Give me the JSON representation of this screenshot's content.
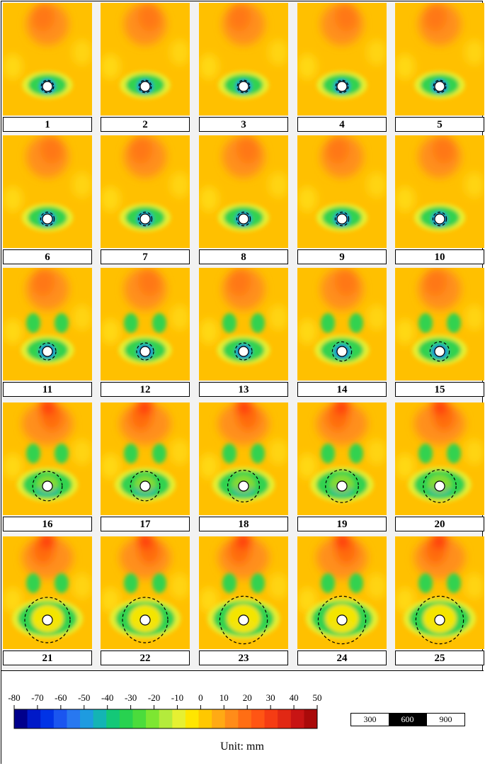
{
  "panels": [
    "1",
    "2",
    "3",
    "4",
    "5",
    "6",
    "7",
    "8",
    "9",
    "10",
    "11",
    "12",
    "13",
    "14",
    "15",
    "16",
    "17",
    "18",
    "19",
    "20",
    "21",
    "22",
    "23",
    "24",
    "25"
  ],
  "colorbar": {
    "ticks": [
      "-80",
      "-70",
      "-60",
      "-50",
      "-40",
      "-30",
      "-20",
      "-10",
      "0",
      "10",
      "20",
      "30",
      "40",
      "50"
    ],
    "unit": "Unit: mm",
    "colors": [
      "#00008c",
      "#0019c8",
      "#0033e6",
      "#1a55f0",
      "#2878f0",
      "#1e9be0",
      "#14b4b4",
      "#14c878",
      "#28d250",
      "#4bdc3c",
      "#7de632",
      "#b4eb3c",
      "#e6f032",
      "#ffe600",
      "#ffc800",
      "#ffaa14",
      "#ff8c19",
      "#ff6e14",
      "#ff5514",
      "#f53c14",
      "#e12814",
      "#c81414",
      "#aa0a0a"
    ]
  },
  "scale_bar": [
    "300",
    "600",
    "900"
  ]
}
